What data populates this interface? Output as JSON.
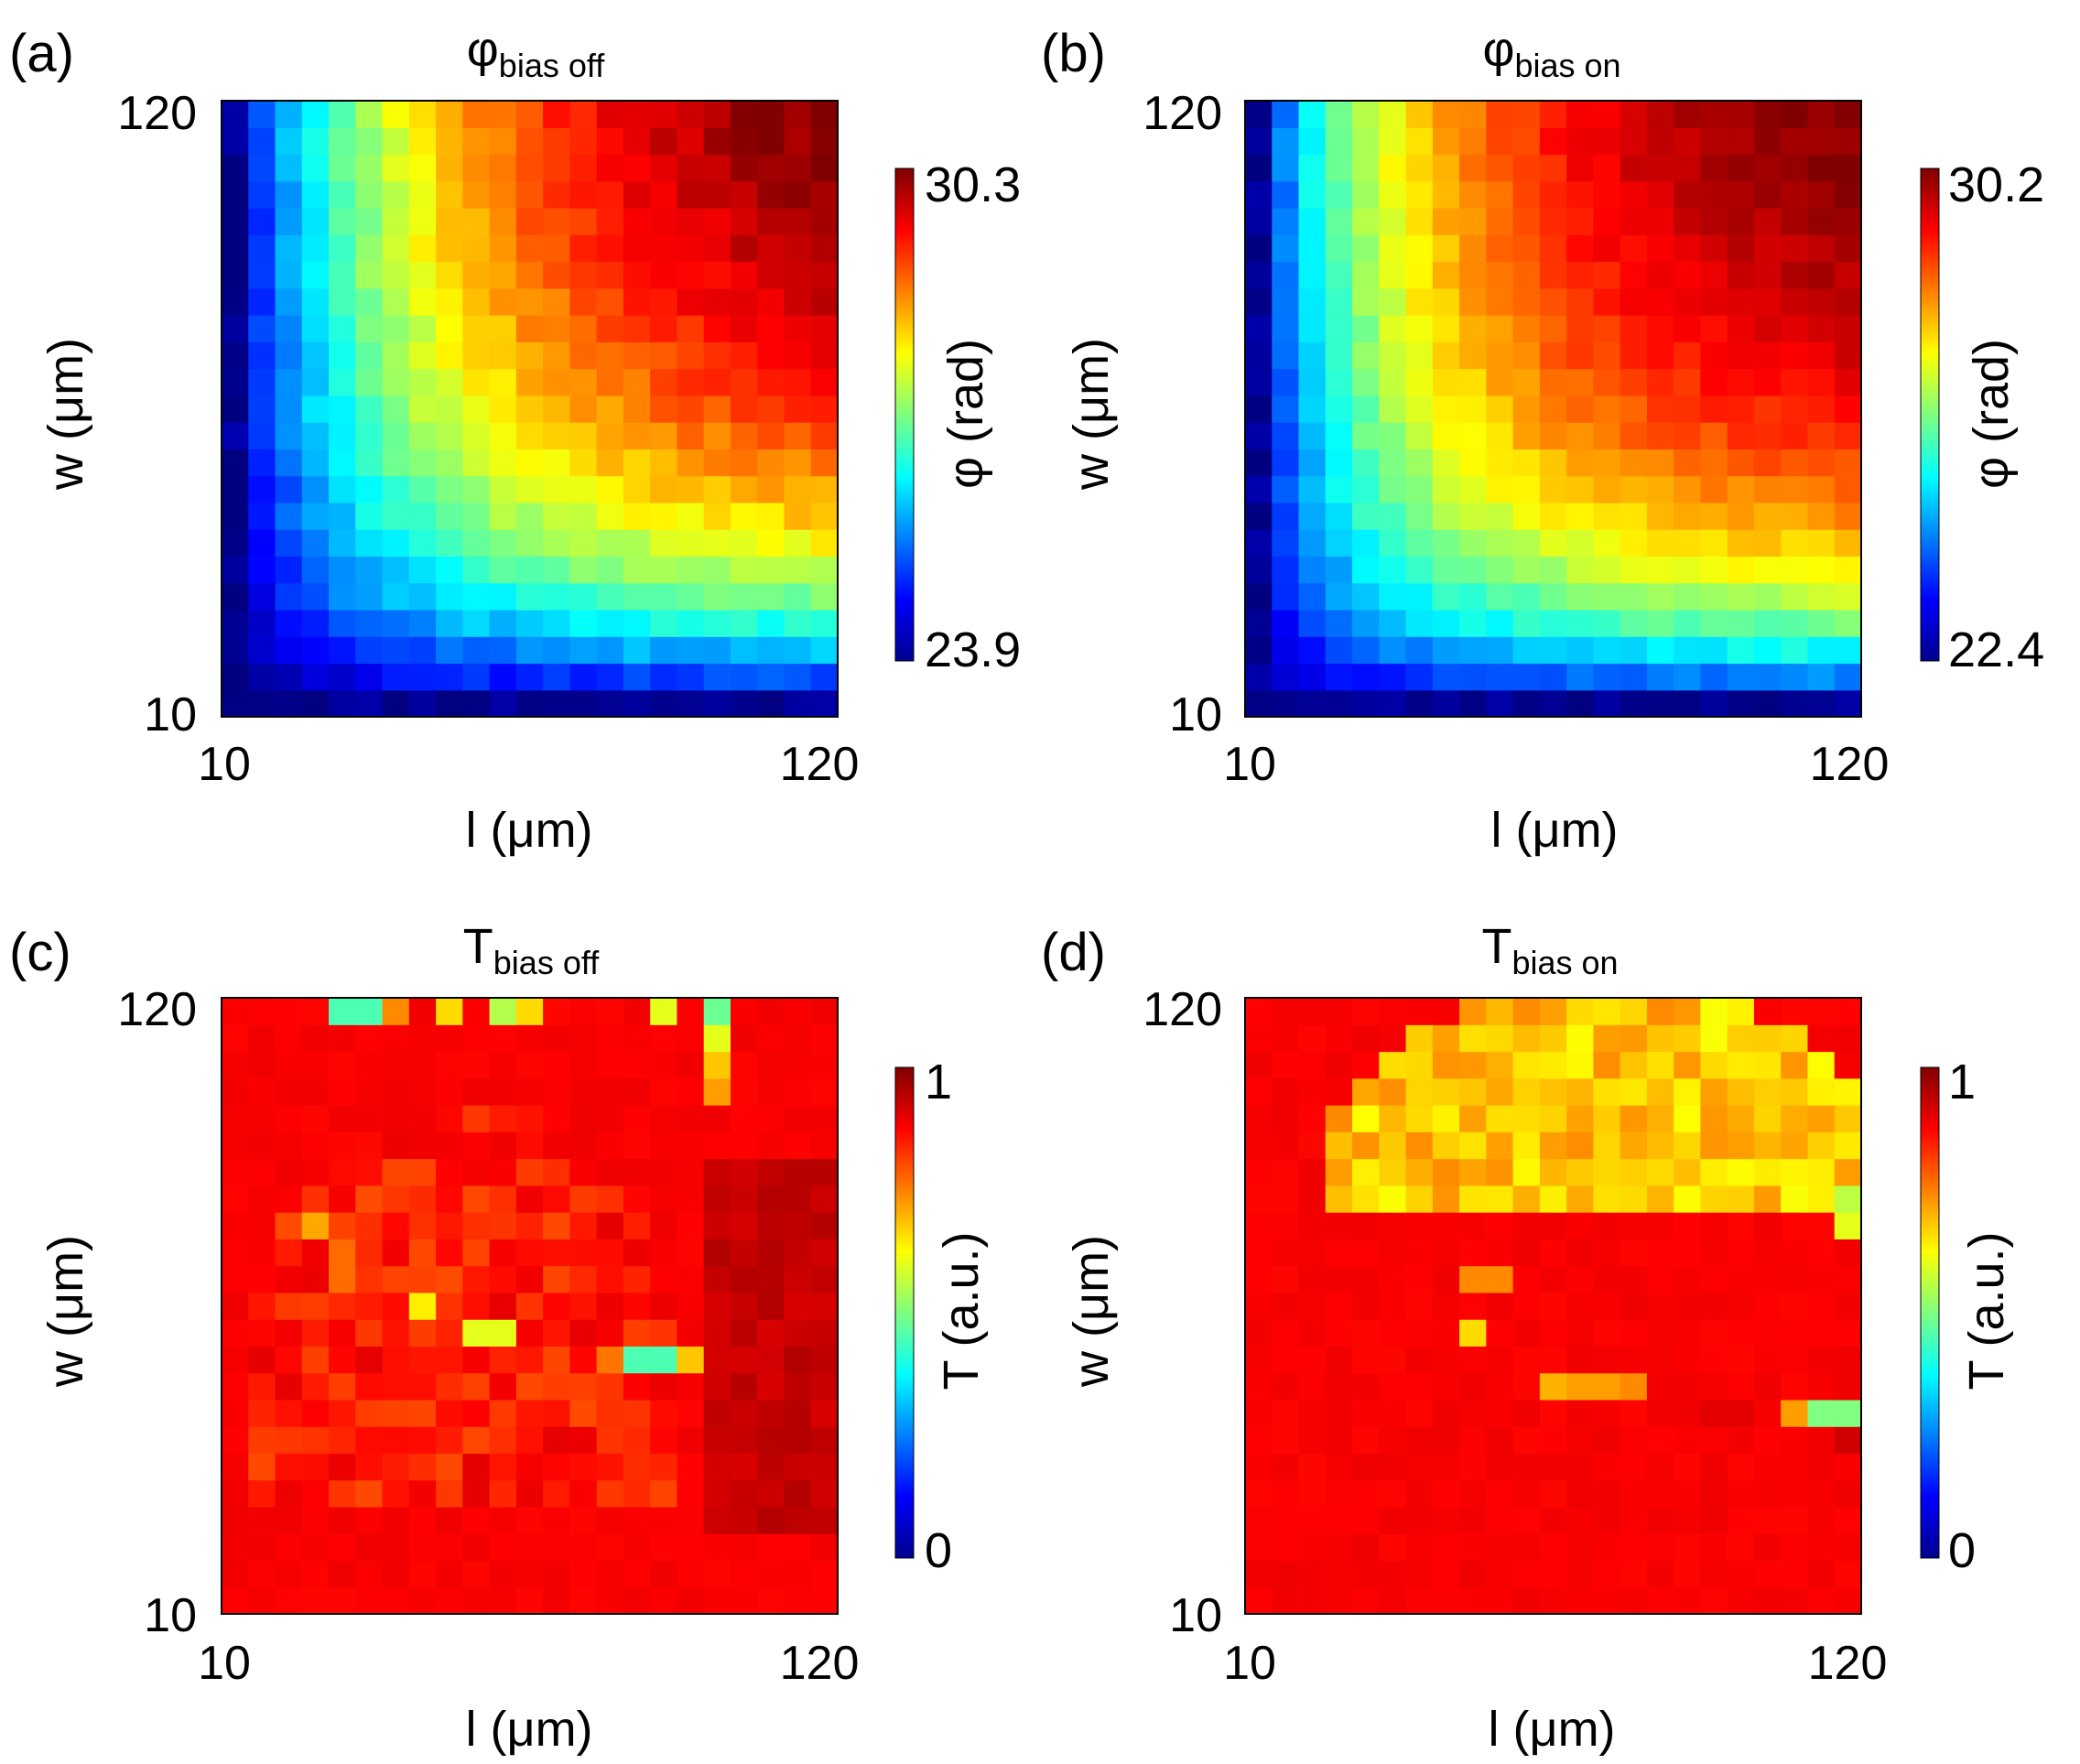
{
  "figure": {
    "panels": [
      {
        "label": "(a)",
        "title_main": "φ",
        "title_sub": "bias off"
      },
      {
        "label": "(b)",
        "title_main": "φ",
        "title_sub": "bias on"
      },
      {
        "label": "(c)",
        "title_main": "T",
        "title_sub": "bias off"
      },
      {
        "label": "(d)",
        "title_main": "T",
        "title_sub": "bias on"
      }
    ]
  },
  "colors": {
    "colormap": "jet",
    "low": "#00008f",
    "mid_low": "#00ffff",
    "mid": "#7fff7f",
    "mid_high": "#ffff00",
    "high": "#800000"
  },
  "chart_data": [
    {
      "type": "heatmap",
      "panel": "(a)",
      "title": "φbias off",
      "xlabel": "l (μm)",
      "ylabel": "w (μm)",
      "x_ticks": [
        "10",
        "120"
      ],
      "y_ticks": [
        "10",
        "120"
      ],
      "xlim": [
        10,
        120
      ],
      "ylim": [
        10,
        120
      ],
      "colorbar": {
        "label": "φ (rad)",
        "min_label": "23.9",
        "max_label": "30.3",
        "min": 23.9,
        "max": 30.3
      },
      "grid_size": 23,
      "pattern": {
        "type": "phase",
        "c_min": 0.02,
        "c_max": 1.0,
        "l_scale": 48,
        "w_scale": 42,
        "exponent": 0.8,
        "noise": 0.03,
        "seed": 11
      }
    },
    {
      "type": "heatmap",
      "panel": "(b)",
      "title": "φbias on",
      "xlabel": "l (μm)",
      "ylabel": "w (μm)",
      "x_ticks": [
        "10",
        "120"
      ],
      "y_ticks": [
        "10",
        "120"
      ],
      "xlim": [
        10,
        120
      ],
      "ylim": [
        10,
        120
      ],
      "colorbar": {
        "label": "φ (rad)",
        "min_label": "22.4",
        "max_label": "30.2",
        "min": 22.4,
        "max": 30.2
      },
      "grid_size": 23,
      "pattern": {
        "type": "phase",
        "c_min": 0.02,
        "c_max": 1.0,
        "l_scale": 40,
        "w_scale": 38,
        "exponent": 0.7,
        "noise": 0.025,
        "seed": 23
      }
    },
    {
      "type": "heatmap",
      "panel": "(c)",
      "title": "Tbias off",
      "xlabel": "l (μm)",
      "ylabel": "w (μm)",
      "x_ticks": [
        "10",
        "120"
      ],
      "y_ticks": [
        "10",
        "120"
      ],
      "xlim": [
        10,
        120
      ],
      "ylim": [
        10,
        120
      ],
      "colorbar": {
        "label": "T (a.u.)",
        "min_label": "0",
        "max_label": "1",
        "min": 0,
        "max": 1
      },
      "grid_size": 23,
      "pattern": {
        "type": "transmission",
        "base": 0.88,
        "region_value": 0.85,
        "region_noise": 0.05,
        "region_x0": 53,
        "region_y0": 42,
        "region_rx": 42,
        "region_ry": 62,
        "dark_corner": 0.95,
        "seed": 37,
        "features": [
          {
            "l": 31,
            "w": 120,
            "value": 0.45
          },
          {
            "l": 35,
            "w": 120,
            "value": 0.45
          },
          {
            "l": 40,
            "w": 120,
            "value": 0.74
          },
          {
            "l": 50,
            "w": 120,
            "value": 0.66
          },
          {
            "l": 60,
            "w": 120,
            "value": 0.55
          },
          {
            "l": 65,
            "w": 120,
            "value": 0.66
          },
          {
            "l": 90,
            "w": 120,
            "value": 0.6
          },
          {
            "l": 100,
            "w": 120,
            "value": 0.48
          },
          {
            "l": 100,
            "w": 115,
            "value": 0.6
          },
          {
            "l": 100,
            "w": 110,
            "value": 0.68
          },
          {
            "l": 100,
            "w": 105,
            "value": 0.72
          },
          {
            "l": 26,
            "w": 80,
            "value": 0.71
          },
          {
            "l": 31,
            "w": 75,
            "value": 0.77
          },
          {
            "l": 31,
            "w": 70,
            "value": 0.77
          },
          {
            "l": 45,
            "w": 65,
            "value": 0.64
          },
          {
            "l": 55,
            "w": 60,
            "value": 0.6
          },
          {
            "l": 60,
            "w": 60,
            "value": 0.6
          },
          {
            "l": 85,
            "w": 55,
            "value": 0.45
          },
          {
            "l": 90,
            "w": 55,
            "value": 0.45
          },
          {
            "l": 95,
            "w": 55,
            "value": 0.68
          },
          {
            "l": 80,
            "w": 55,
            "value": 0.76
          }
        ]
      }
    },
    {
      "type": "heatmap",
      "panel": "(d)",
      "title": "Tbias on",
      "xlabel": "l (μm)",
      "ylabel": "w (μm)",
      "x_ticks": [
        "10",
        "120"
      ],
      "y_ticks": [
        "10",
        "120"
      ],
      "xlim": [
        10,
        120
      ],
      "ylim": [
        10,
        120
      ],
      "colorbar": {
        "label": "T (a.u.)",
        "min_label": "0",
        "max_label": "1",
        "min": 0,
        "max": 1
      },
      "grid_size": 23,
      "pattern": {
        "type": "transmission",
        "base": 0.88,
        "region_value": 0.68,
        "region_noise": 0.06,
        "region_x0": 75,
        "region_y0": 88,
        "region_rx": 55,
        "region_ry": 38,
        "dark_corner": 0.0,
        "seed": 51,
        "features": [
          {
            "l": 95,
            "w": 120,
            "value": 0.62
          },
          {
            "l": 95,
            "w": 115,
            "value": 0.62
          },
          {
            "l": 95,
            "w": 110,
            "value": 0.66
          },
          {
            "l": 120,
            "w": 85,
            "value": 0.56
          },
          {
            "l": 120,
            "w": 80,
            "value": 0.6
          },
          {
            "l": 115,
            "w": 85,
            "value": 0.64
          },
          {
            "l": 50,
            "w": 70,
            "value": 0.74
          },
          {
            "l": 55,
            "w": 70,
            "value": 0.74
          },
          {
            "l": 50,
            "w": 60,
            "value": 0.66
          },
          {
            "l": 65,
            "w": 50,
            "value": 0.7
          },
          {
            "l": 70,
            "w": 50,
            "value": 0.72
          },
          {
            "l": 75,
            "w": 50,
            "value": 0.72
          },
          {
            "l": 80,
            "w": 50,
            "value": 0.74
          },
          {
            "l": 115,
            "w": 45,
            "value": 0.5
          },
          {
            "l": 120,
            "w": 45,
            "value": 0.5
          },
          {
            "l": 110,
            "w": 45,
            "value": 0.72
          },
          {
            "l": 120,
            "w": 40,
            "value": 0.92
          },
          {
            "l": 100,
            "w": 45,
            "value": 0.9
          },
          {
            "l": 95,
            "w": 45,
            "value": 0.9
          }
        ]
      }
    }
  ]
}
